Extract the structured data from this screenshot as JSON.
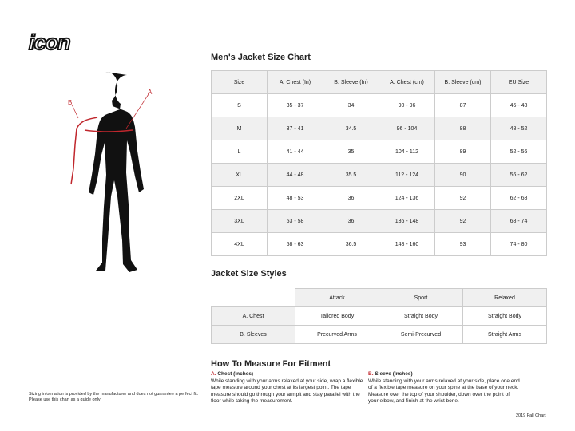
{
  "logo": "icon",
  "labels": {
    "a": "A",
    "b": "B"
  },
  "size_chart": {
    "title": "Men's Jacket Size Chart",
    "headers": [
      "Size",
      "A. Chest (In)",
      "B. Sleeve (In)",
      "A. Chest (cm)",
      "B. Sleeve (cm)",
      "EU Size"
    ],
    "rows": [
      [
        "S",
        "35 - 37",
        "34",
        "90 - 96",
        "87",
        "45 - 48"
      ],
      [
        "M",
        "37 - 41",
        "34.5",
        "96 - 104",
        "88",
        "48 - 52"
      ],
      [
        "L",
        "41 - 44",
        "35",
        "104 - 112",
        "89",
        "52 - 56"
      ],
      [
        "XL",
        "44 - 48",
        "35.5",
        "112 - 124",
        "90",
        "56 - 62"
      ],
      [
        "2XL",
        "48 - 53",
        "36",
        "124 - 136",
        "92",
        "62 - 68"
      ],
      [
        "3XL",
        "53 - 58",
        "36",
        "136 - 148",
        "92",
        "68 - 74"
      ],
      [
        "4XL",
        "58 - 63",
        "36.5",
        "148 - 160",
        "93",
        "74 - 80"
      ]
    ]
  },
  "styles": {
    "title": "Jacket Size Styles",
    "headers": [
      "Attack",
      "Sport",
      "Relaxed"
    ],
    "rows": [
      [
        "A. Chest",
        "Tailored Body",
        "Straight Body",
        "Straight Body"
      ],
      [
        "B. Sleeves",
        "Precurved Arms",
        "Semi-Precurved",
        "Straight Arms"
      ]
    ]
  },
  "measure": {
    "title": "How To Measure For Fitment",
    "a": {
      "letter": "A.",
      "title": "Chest (Inches)",
      "text": "While standing with your arms relaxed at your side, wrap a flexible tape measure around your chest at its largest point. The tape measure should go through your armpit and stay parallel with the floor while taking the measurement."
    },
    "b": {
      "letter": "B.",
      "title": "Sleeve (Inches)",
      "text": "While standing with your arms relaxed at your side, place one end of a flexible tape measure on your spine at the base of your neck. Measure over the top of your shoulder, down over the point of your elbow, and finish at the wrist bone."
    }
  },
  "disclaimer": "Sizing information is provided by the manufacturer and does not guarantee a perfect fit. Please use this chart as a guide only",
  "footer": "2019 Fall Chart",
  "colors": {
    "accent": "#c0272d",
    "header_bg": "#f0f0f0"
  }
}
